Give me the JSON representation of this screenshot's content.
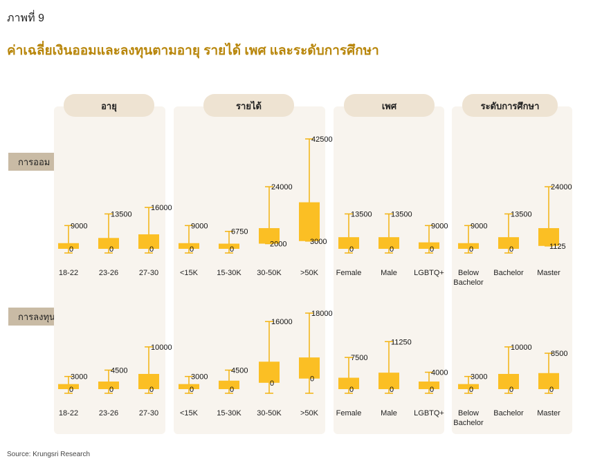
{
  "figure_label": "ภาพที่ 9",
  "title": "ค่าเฉลี่ยเงินออมและลงทุนตามอายุ รายได้ เพศ และระดับการศึกษา",
  "source": "Source: Krungsri Research",
  "row_labels": [
    "การออม",
    "การลงทุน"
  ],
  "colors": {
    "box": "#fbbf24",
    "whisker": "#f2b311",
    "panel": "#f8f4ee",
    "header": "#eee3d2",
    "title": "#b8860b"
  },
  "chart_data": {
    "type": "boxplot",
    "groups": [
      {
        "header": "อายุ",
        "categories": [
          "18-22",
          "23-26",
          "27-30"
        ],
        "saving": [
          {
            "q1": 0,
            "q3": 2200,
            "min": 0,
            "max": 9000
          },
          {
            "q1": 0,
            "q3": 4200,
            "min": 0,
            "max": 13500
          },
          {
            "q1": 0,
            "q3": 5600,
            "min": 0,
            "max": 16000
          }
        ],
        "investment": [
          {
            "q1": 0,
            "q3": 1200,
            "min": 0,
            "max": 3000
          },
          {
            "q1": 0,
            "q3": 1800,
            "min": 0,
            "max": 4500
          },
          {
            "q1": 0,
            "q3": 3600,
            "min": 0,
            "max": 10000
          }
        ]
      },
      {
        "header": "รายได้",
        "categories": [
          "<15K",
          "15-30K",
          "30-50K",
          ">50K"
        ],
        "saving": [
          {
            "q1": 0,
            "q3": 2200,
            "min": 0,
            "max": 9000
          },
          {
            "q1": 0,
            "q3": 2000,
            "min": 0,
            "max": 6750
          },
          {
            "q1": 2000,
            "q3": 8000,
            "min": 2000,
            "max": 24000
          },
          {
            "q1": 3000,
            "q3": 18000,
            "min": 3000,
            "max": 42500
          }
        ],
        "investment": [
          {
            "q1": 0,
            "q3": 1200,
            "min": 0,
            "max": 3000
          },
          {
            "q1": 0,
            "q3": 2000,
            "min": 0,
            "max": 4500
          },
          {
            "q1": 1500,
            "q3": 6500,
            "min": 0,
            "max": 16000
          },
          {
            "q1": 2500,
            "q3": 7500,
            "min": 0,
            "max": 18000
          }
        ]
      },
      {
        "header": "เพศ",
        "categories": [
          "Female",
          "Male",
          "LGBTQ+"
        ],
        "saving": [
          {
            "q1": 0,
            "q3": 4500,
            "min": 0,
            "max": 13500
          },
          {
            "q1": 0,
            "q3": 4500,
            "min": 0,
            "max": 13500
          },
          {
            "q1": 0,
            "q3": 2500,
            "min": 0,
            "max": 9000
          }
        ],
        "investment": [
          {
            "q1": 0,
            "q3": 2700,
            "min": 0,
            "max": 7500
          },
          {
            "q1": 0,
            "q3": 3900,
            "min": 0,
            "max": 11250
          },
          {
            "q1": 0,
            "q3": 1800,
            "min": 0,
            "max": 4000
          }
        ]
      },
      {
        "header": "ระดับการศึกษา",
        "categories": [
          "Below Bachelor",
          "Bachelor",
          "Master"
        ],
        "saving": [
          {
            "q1": 0,
            "q3": 2200,
            "min": 0,
            "max": 9000
          },
          {
            "q1": 0,
            "q3": 4500,
            "min": 0,
            "max": 13500
          },
          {
            "q1": 1125,
            "q3": 8000,
            "min": 1125,
            "max": 24000
          }
        ],
        "investment": [
          {
            "q1": 0,
            "q3": 1200,
            "min": 0,
            "max": 3000
          },
          {
            "q1": 0,
            "q3": 3600,
            "min": 0,
            "max": 10000
          },
          {
            "q1": 0,
            "q3": 3800,
            "min": 0,
            "max": 8500
          }
        ]
      }
    ]
  }
}
